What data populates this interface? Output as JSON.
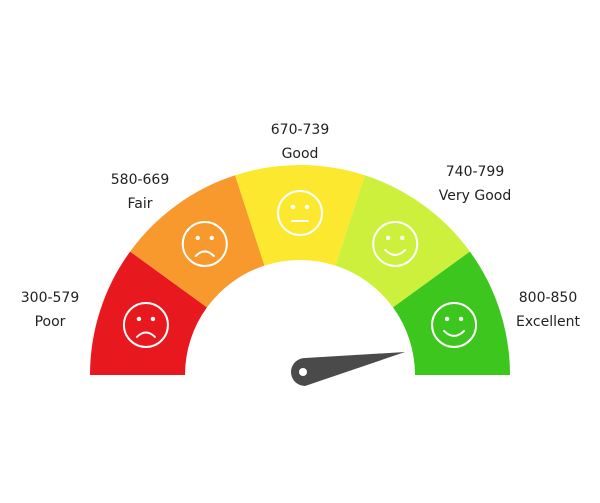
{
  "segments": [
    {
      "range": "300-579",
      "label": "Poor",
      "color": "#e8191e"
    },
    {
      "range": "580-669",
      "label": "Fair",
      "color": "#f7992c"
    },
    {
      "range": "670-739",
      "label": "Good",
      "color": "#fde830"
    },
    {
      "range": "740-799",
      "label": "Very Good",
      "color": "#cdf03c"
    },
    {
      "range": "800-850",
      "label": "Excellent",
      "color": "#3cc61e"
    }
  ]
}
